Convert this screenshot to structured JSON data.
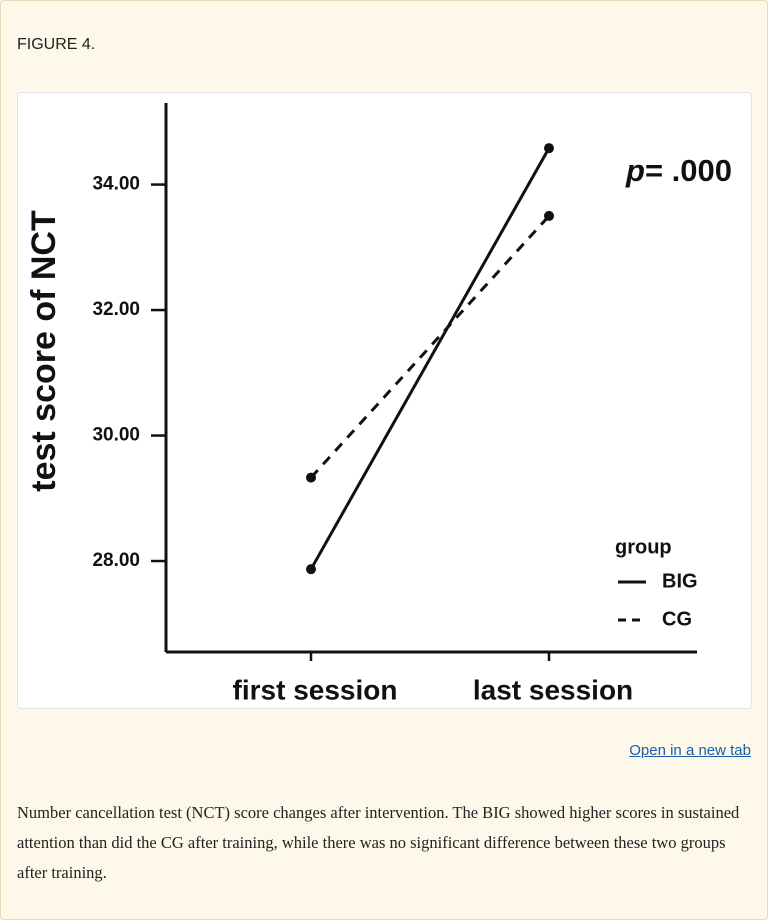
{
  "figure_label": "FIGURE 4.",
  "chart_data": {
    "type": "line",
    "y_label": "test score of NCT",
    "categories": [
      "first session",
      "last session"
    ],
    "series": [
      {
        "name": "BIG",
        "color": "#111111",
        "line_style": "solid",
        "values": [
          27.87,
          34.58
        ]
      },
      {
        "name": "CG",
        "color": "#111111",
        "line_style": "dashed",
        "values": [
          29.33,
          33.5
        ]
      }
    ],
    "ylim": [
      26.55,
      35.3
    ],
    "yticks": [
      {
        "value": 28,
        "label": "28.00"
      },
      {
        "value": 30,
        "label": "30.00"
      },
      {
        "value": 32,
        "label": "32.00"
      },
      {
        "value": 34,
        "label": "34.00"
      }
    ],
    "legend_title": "group",
    "annotation": {
      "symbol": "p",
      "text": "= .000"
    }
  },
  "link": "Open in a new tab",
  "caption": "Number cancellation test (NCT) score changes after intervention. The BIG showed higher scores in sustained attention than did the CG after training, while there was no significant difference between these two groups after training."
}
